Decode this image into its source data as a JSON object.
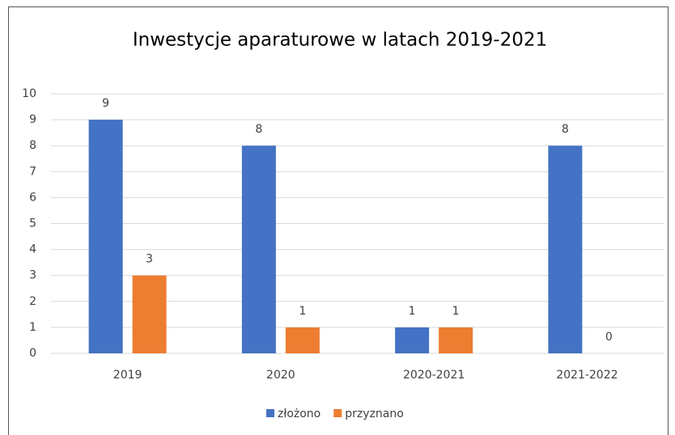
{
  "chart_data": {
    "type": "bar",
    "title": "Inwestycje aparaturowe w latach 2019-2021",
    "categories": [
      "2019",
      "2020",
      "2020-2021",
      "2021-2022"
    ],
    "series": [
      {
        "name": "złożono",
        "color": "#4472c4",
        "values": [
          9,
          8,
          1,
          8
        ]
      },
      {
        "name": "przyznano",
        "color": "#ed7d31",
        "values": [
          3,
          1,
          1,
          0
        ]
      }
    ],
    "ylim": [
      0,
      10
    ],
    "yticks": [
      0,
      1,
      2,
      3,
      4,
      5,
      6,
      7,
      8,
      9,
      10
    ],
    "grid": true,
    "legend": "bottom"
  }
}
